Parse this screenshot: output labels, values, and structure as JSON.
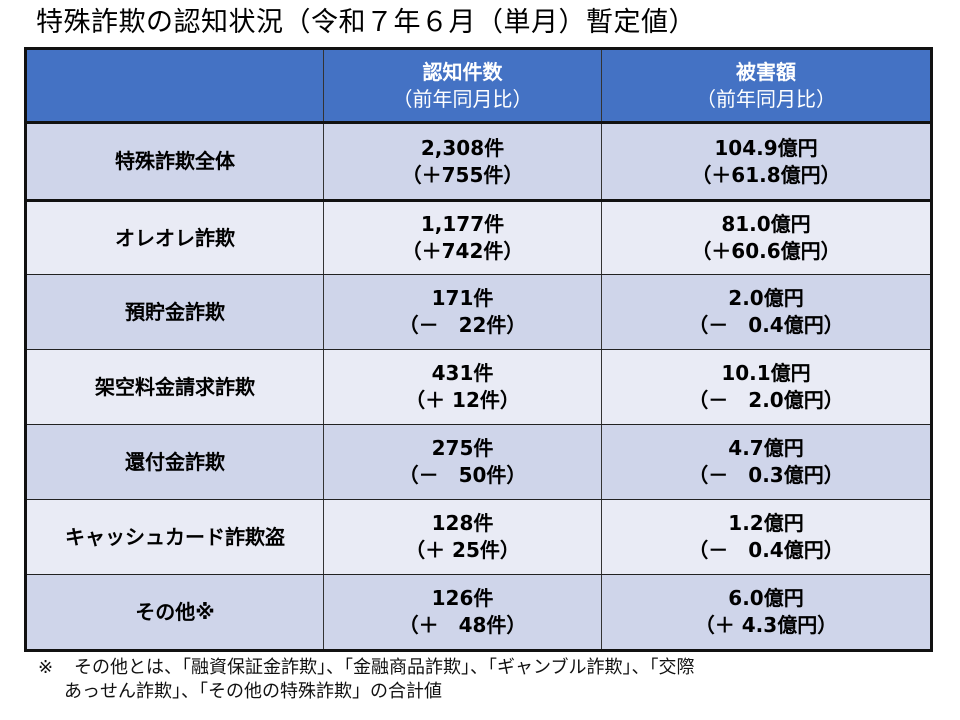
{
  "title": "特殊詐欺の認知状況（令和７年６月（単月）暫定値）",
  "table": {
    "colors": {
      "header_bg": "#4472C4",
      "row_odd_bg": "#CFD5EA",
      "row_even_bg": "#E9EBF5",
      "header_text": "#FFFFFF"
    },
    "headers": [
      {
        "line1": "",
        "line2": ""
      },
      {
        "line1": "認知件数",
        "line2": "（前年同月比）"
      },
      {
        "line1": "被害額",
        "line2": "（前年同月比）"
      }
    ],
    "rows": [
      {
        "category": "特殊詐欺全体",
        "count": "2,308件",
        "count_change": "（＋755件）",
        "damage": "104.9億円",
        "damage_change": "（＋61.8億円）"
      },
      {
        "category": "オレオレ詐欺",
        "count": "1,177件",
        "count_change": "（＋742件）",
        "damage": "81.0億円",
        "damage_change": "（＋60.6億円）"
      },
      {
        "category": "預貯金詐欺",
        "count": "171件",
        "count_change": "（－　22件）",
        "damage": "2.0億円",
        "damage_change": "（－　0.4億円）"
      },
      {
        "category": "架空料金請求詐欺",
        "count": "431件",
        "count_change": "（＋ 12件）",
        "damage": "10.1億円",
        "damage_change": "（－　2.0億円）"
      },
      {
        "category": "還付金詐欺",
        "count": "275件",
        "count_change": "（－　50件）",
        "damage": "4.7億円",
        "damage_change": "（－　0.3億円）"
      },
      {
        "category": "キャッシュカード詐欺盗",
        "count": "128件",
        "count_change": "（＋ 25件）",
        "damage": "1.2億円",
        "damage_change": "（－　0.4億円）"
      },
      {
        "category": "その他※",
        "count": "126件",
        "count_change": "（＋　48件）",
        "damage": "6.0億円",
        "damage_change": "（＋ 4.3億円）"
      }
    ]
  },
  "footnote": {
    "mark": "※",
    "line1": "その他とは、「融資保証金詐欺」、「金融商品詐欺」、「ギャンブル詐欺」、「交際",
    "line2": "あっせん詐欺」、「その他の特殊詐欺」の合計値"
  }
}
